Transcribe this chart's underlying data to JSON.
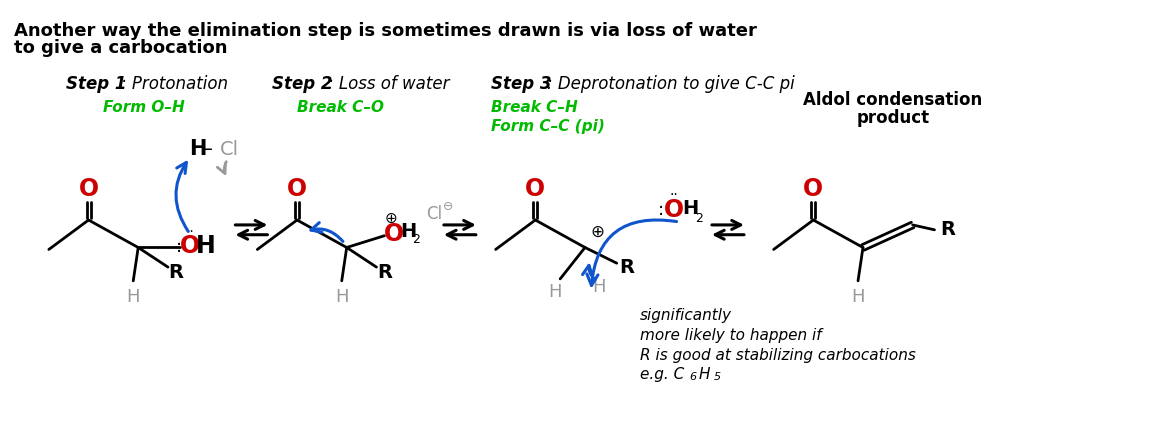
{
  "title_line1": "Another way the elimination step is sometimes drawn is via loss of water",
  "title_line2": "to give a carbocation",
  "bg_color": "#ffffff",
  "step1_label": "Step 1",
  "step1_desc": ": Protonation",
  "step2_label": "Step 2",
  "step2_desc": ": Loss of water",
  "step3_label": "Step 3",
  "step3_desc": ": Deprotonation to give C-C pi",
  "step1_green1": "Form O–H",
  "step2_green1": "Break C–O",
  "step3_green1": "Break C–H",
  "step3_green2": "Form C–C (pi)",
  "product_label1": "Aldol condensation",
  "product_label2": "product",
  "note_line1": "significantly",
  "note_line2": "more likely to happen if",
  "note_line3": "R is good at stabilizing carbocations",
  "note_line4": "e.g. C",
  "green_color": "#00bb00",
  "red_color": "#cc0000",
  "blue_color": "#1155cc",
  "gray_color": "#999999",
  "black_color": "#000000"
}
